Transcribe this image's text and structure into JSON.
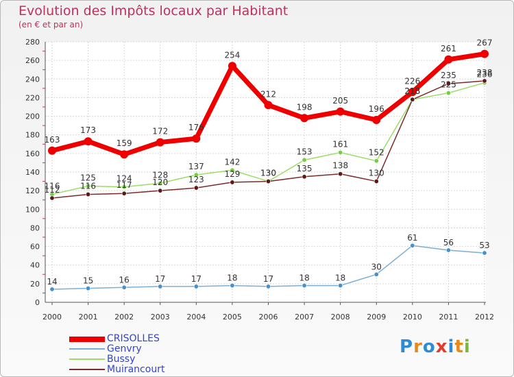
{
  "header": {
    "title": "Evolution des Impôts locaux par Habitant",
    "subtitle": "(en € et par an)"
  },
  "chart_data": {
    "type": "line",
    "title": "Evolution des Impôts locaux par Habitant",
    "subtitle": "(en € et par an)",
    "xlabel": "",
    "ylabel": "",
    "ylim": [
      0,
      280
    ],
    "ytick_step": 20,
    "grid": true,
    "legend_position": "bottom-left",
    "x": [
      "2000",
      "2001",
      "2002",
      "2003",
      "2004",
      "2005",
      "2006",
      "2007",
      "2008",
      "2009",
      "2010",
      "2011",
      "2012"
    ],
    "series": [
      {
        "name": "Bussy",
        "color": "#99dd66",
        "dot": "#77cc44",
        "values": [
          116,
          125,
          124,
          128,
          137,
          142,
          130,
          153,
          161,
          152,
          218,
          225,
          236
        ],
        "labels": [
          "116",
          "125",
          "124",
          "128",
          "137",
          "142",
          "130",
          "153",
          "161",
          "152",
          "218",
          "225",
          "236"
        ]
      },
      {
        "name": "Muirancourt",
        "color": "#7a2a2a",
        "dot": "#5a1a1a",
        "values": [
          112,
          116,
          117,
          120,
          123,
          129,
          130,
          135,
          138,
          130,
          218,
          235,
          238
        ],
        "labels": [
          "112",
          "116",
          "117",
          "120",
          "123",
          "129",
          "130",
          "135",
          "138",
          "130",
          "218",
          "235",
          "238"
        ]
      },
      {
        "name": "Genvry",
        "color": "#7aaed6",
        "dot": "#4a90c8",
        "values": [
          14,
          15,
          16,
          17,
          17,
          18,
          17,
          18,
          18,
          30,
          61,
          56,
          53
        ],
        "labels": [
          "14",
          "15",
          "16",
          "17",
          "17",
          "18",
          "17",
          "18",
          "18",
          "30",
          "61",
          "56",
          "53"
        ]
      },
      {
        "name": "CRISOLLES",
        "color": "#ee0000",
        "dot": "#ee0000",
        "values": [
          163,
          173,
          159,
          172,
          176,
          254,
          212,
          198,
          205,
          196,
          226,
          261,
          267
        ],
        "labels": [
          "163",
          "173",
          "159",
          "172",
          "176",
          "254",
          "212",
          "198",
          "205",
          "196",
          "226",
          "261",
          "267"
        ]
      }
    ],
    "legend": [
      {
        "name": "CRISOLLES",
        "color": "#ee0000",
        "text_color": "#3344cc"
      },
      {
        "name": "Genvry",
        "color": "#7aaed6",
        "text_color": "#3344cc"
      },
      {
        "name": "Bussy",
        "color": "#99dd66",
        "text_color": "#3344cc"
      },
      {
        "name": "Muirancourt",
        "color": "#7a2a2a",
        "text_color": "#3344cc"
      }
    ]
  },
  "logo": {
    "letters": [
      "P",
      "r",
      "o",
      "x",
      "i",
      "t",
      "i"
    ],
    "colors": [
      "#2e8bd4",
      "#e88a1a",
      "#2e8bd4",
      "#e83a2a",
      "#2e8bd4",
      "#e88a1a",
      "#7ab83a"
    ]
  }
}
